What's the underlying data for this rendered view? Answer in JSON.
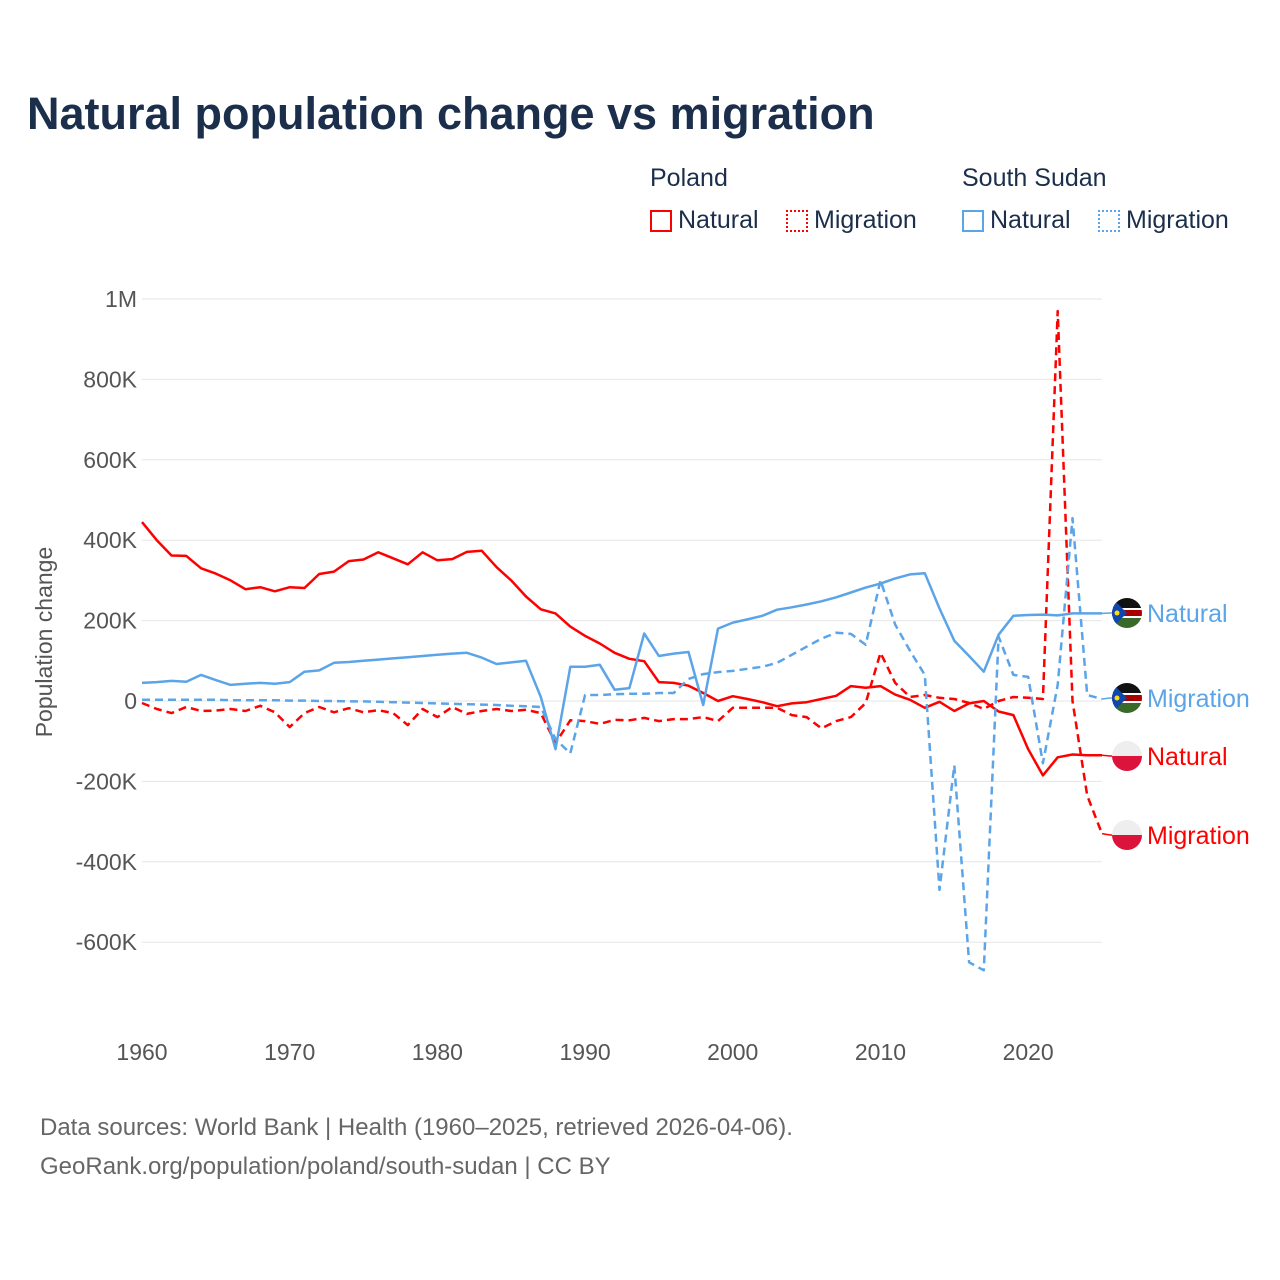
{
  "chart_data": {
    "type": "line",
    "title": "Natural population change vs migration",
    "ylabel": "Population change",
    "xlabel": "",
    "xlim": [
      1960,
      2025
    ],
    "ylim": [
      -700000,
      1000000
    ],
    "xticks": [
      "1960",
      "1970",
      "1980",
      "1990",
      "2000",
      "2010",
      "2020"
    ],
    "yticks": [
      {
        "v": 1000000,
        "l": "1M"
      },
      {
        "v": 800000,
        "l": "800K"
      },
      {
        "v": 600000,
        "l": "600K"
      },
      {
        "v": 400000,
        "l": "400K"
      },
      {
        "v": 200000,
        "l": "200K"
      },
      {
        "v": 0,
        "l": "0"
      },
      {
        "v": -200000,
        "l": "-200K"
      },
      {
        "v": -400000,
        "l": "-400K"
      },
      {
        "v": -600000,
        "l": "-600K"
      }
    ],
    "grid": true,
    "legend": {
      "placement": "top-right",
      "groups": [
        "Poland",
        "South Sudan"
      ]
    },
    "x_start": 1960,
    "unit": 1000,
    "series": [
      {
        "id": "pl-nat",
        "country": "Poland",
        "name": "Natural",
        "color": "#ff0000",
        "dash": false,
        "end_label": "Natural",
        "values": [
          445,
          400,
          362,
          361,
          330,
          317,
          300,
          278,
          283,
          273,
          283,
          281,
          316,
          322,
          348,
          352,
          370,
          355,
          340,
          370,
          350,
          353,
          371,
          374,
          333,
          300,
          260,
          228,
          218,
          185,
          162,
          143,
          120,
          105,
          99,
          47,
          45,
          38,
          20,
          0,
          12,
          5,
          -3,
          -13,
          -6,
          -3,
          5,
          13,
          37,
          33,
          37,
          16,
          3,
          -17,
          -2,
          -25,
          -6,
          0,
          -26,
          -35,
          -120,
          -185,
          -140,
          -133,
          -135,
          -135
        ]
      },
      {
        "id": "pl-mig",
        "country": "Poland",
        "name": "Migration",
        "color": "#ff0000",
        "dash": true,
        "end_label": "Migration",
        "values": [
          -5,
          -20,
          -30,
          -15,
          -25,
          -24,
          -20,
          -25,
          -12,
          -28,
          -65,
          -30,
          -15,
          -28,
          -18,
          -28,
          -23,
          -30,
          -60,
          -20,
          -40,
          -15,
          -32,
          -25,
          -20,
          -25,
          -22,
          -30,
          -105,
          -48,
          -50,
          -57,
          -47,
          -48,
          -42,
          -50,
          -45,
          -45,
          -40,
          -50,
          -17,
          -17,
          -17,
          -17,
          -35,
          -40,
          -68,
          -50,
          -40,
          -5,
          120,
          45,
          10,
          15,
          8,
          5,
          -5,
          -20,
          0,
          10,
          8,
          5,
          970,
          0,
          -235,
          -330
        ]
      },
      {
        "id": "ss-nat",
        "country": "South Sudan",
        "name": "Natural",
        "color": "#5ba4e8",
        "dash": false,
        "end_label": "Natural",
        "values": [
          45,
          47,
          50,
          48,
          65,
          52,
          40,
          43,
          45,
          43,
          47,
          73,
          76,
          95,
          97,
          100,
          103,
          106,
          109,
          112,
          115,
          118,
          120,
          108,
          92,
          96,
          100,
          10,
          -120,
          85,
          85,
          90,
          28,
          32,
          168,
          112,
          118,
          122,
          -10,
          180,
          195,
          203,
          212,
          227,
          233,
          240,
          248,
          258,
          270,
          282,
          292,
          305,
          315,
          318,
          230,
          150,
          112,
          73,
          165,
          212,
          214,
          215,
          213,
          218,
          218,
          218
        ]
      },
      {
        "id": "ss-mig",
        "country": "South Sudan",
        "name": "Migration",
        "color": "#5ba4e8",
        "dash": true,
        "end_label": "Migration",
        "values": [
          3,
          3,
          3,
          3,
          3,
          3,
          2,
          2,
          2,
          2,
          1,
          1,
          0,
          0,
          -1,
          -1,
          -2,
          -3,
          -4,
          -5,
          -6,
          -7,
          -8,
          -9,
          -10,
          -12,
          -13,
          -15,
          -95,
          -130,
          15,
          15,
          17,
          18,
          18,
          20,
          20,
          55,
          67,
          72,
          75,
          80,
          85,
          95,
          115,
          135,
          155,
          170,
          167,
          140,
          300,
          190,
          125,
          65,
          -470,
          -160,
          -650,
          -670,
          160,
          65,
          60,
          -155,
          40,
          455,
          15,
          5
        ]
      }
    ]
  },
  "legend": {
    "poland": "Poland",
    "south_sudan": "South Sudan",
    "natural": "Natural",
    "migration": "Migration"
  },
  "footer": {
    "line1": "Data sources: World Bank | Health (1960–2025, retrieved 2026-04-06).",
    "line2": "GeoRank.org/population/poland/south-sudan | CC BY"
  }
}
